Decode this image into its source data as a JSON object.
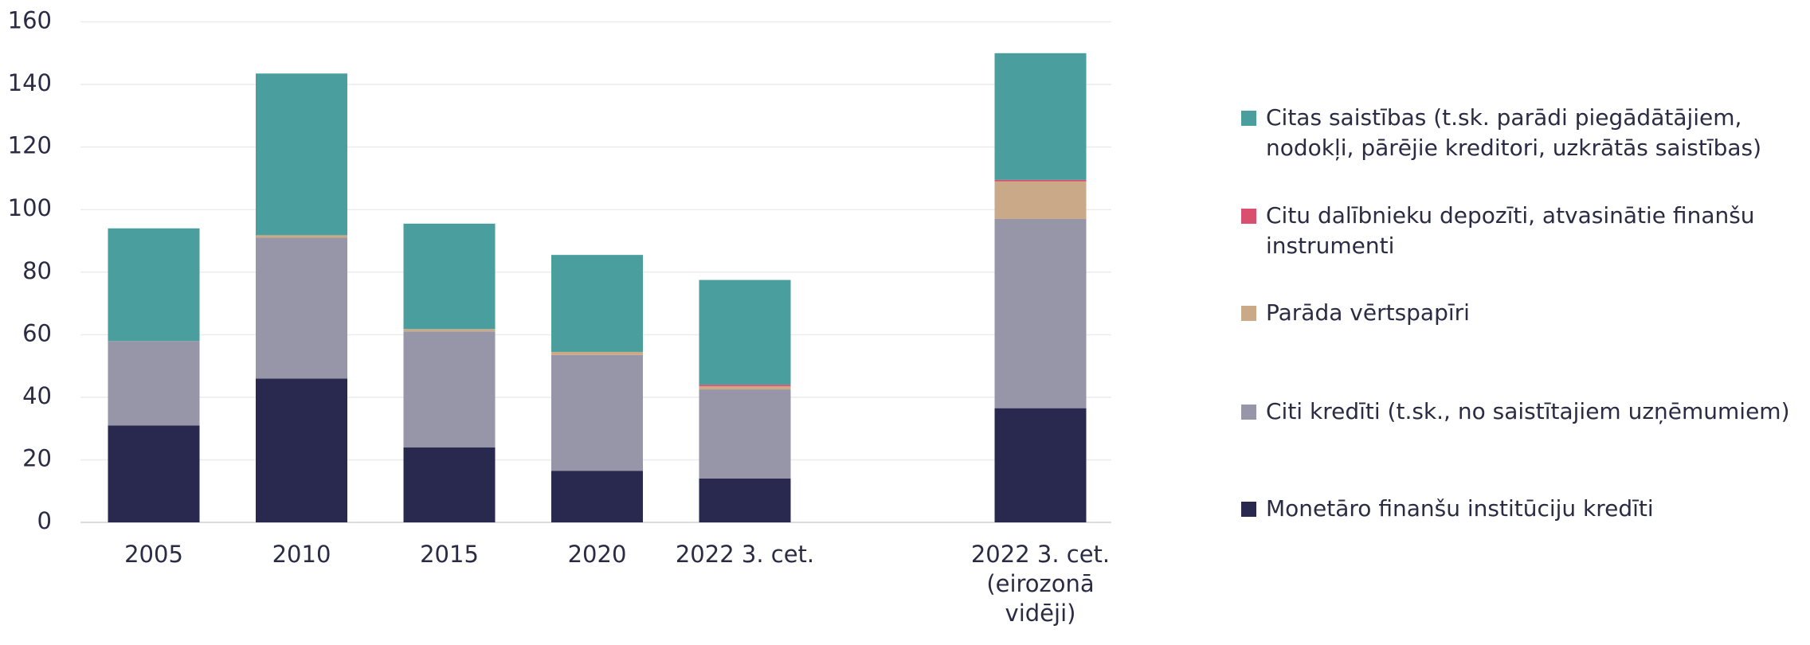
{
  "chart_data": {
    "type": "stacked_bar",
    "categories": [
      "2005",
      "2010",
      "2015",
      "2020",
      "2022 3. cet.",
      null,
      "2022 3. cet. (eirozonā vidēji)"
    ],
    "series": [
      {
        "name": "Monetāro finanšu institūciju kredīti",
        "color": "#29284f",
        "values": [
          31,
          46,
          24,
          16.5,
          14,
          null,
          36.5
        ]
      },
      {
        "name": "Citi kredīti (t.sk., no saistītajiem uzņēmumiem)",
        "color": "#9796a8",
        "values": [
          27,
          45,
          37,
          37,
          28.5,
          null,
          60.5
        ]
      },
      {
        "name": "Parāda vērtspapīri",
        "color": "#c9a988",
        "values": [
          0,
          0.8,
          0.8,
          1,
          1,
          null,
          12
        ]
      },
      {
        "name": "Citu dalībnieku depozīti, atvasinātie finanšu instrumenti",
        "color": "#d9506e",
        "values": [
          0,
          0,
          0,
          0,
          0.5,
          null,
          0.5
        ]
      },
      {
        "name": "Citas saistības (t.sk. parādi piegādātājiem, nodokļi, pārējie kreditori, uzkrātās saistības)",
        "color": "#4a9e9e",
        "values": [
          36,
          51.7,
          33.7,
          31,
          33.5,
          null,
          40.5
        ]
      }
    ],
    "ylim": [
      0,
      160
    ],
    "yticks": [
      0,
      20,
      40,
      60,
      80,
      100,
      120,
      140,
      160
    ],
    "grid": true,
    "legend": "right"
  }
}
